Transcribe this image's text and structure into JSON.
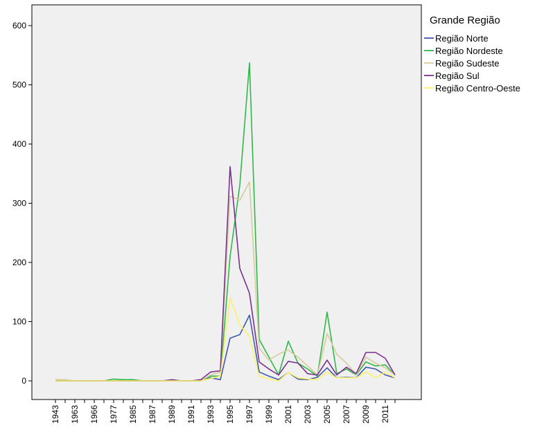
{
  "chart_data": {
    "type": "line",
    "title": "",
    "xlabel": "",
    "ylabel": "",
    "ylim": [
      -30,
      650
    ],
    "yticks": [
      0,
      100,
      200,
      300,
      400,
      500,
      600
    ],
    "grid": false,
    "legend_position": "right",
    "legend_title": "Grande Região",
    "plot_background": "#f0f0f0",
    "x": [
      "1943",
      "1960",
      "1963",
      "1964",
      "1966",
      "1975",
      "1977",
      "1980",
      "1985",
      "1986",
      "1987",
      "1988",
      "1989",
      "1990",
      "1991",
      "1992",
      "1993",
      "1994",
      "1995",
      "1996",
      "1997",
      "1998",
      "1999",
      "2000",
      "2001",
      "2002",
      "2003",
      "2004",
      "2005",
      "2006",
      "2007",
      "2008",
      "2009",
      "2010",
      "2011",
      "2012"
    ],
    "x_tick_labels": [
      "1943",
      "1963",
      "1966",
      "1977",
      "1985",
      "1987",
      "1989",
      "1991",
      "1993",
      "1995",
      "1997",
      "1999",
      "2001",
      "2003",
      "2005",
      "2007",
      "2009",
      "2011"
    ],
    "series": [
      {
        "name": "Região Norte",
        "color": "#3e58ac",
        "values": [
          0,
          0,
          0,
          0,
          0,
          0,
          0,
          0,
          0,
          0,
          0,
          0,
          0,
          0,
          0,
          0,
          5,
          2,
          72,
          78,
          111,
          15,
          8,
          2,
          14,
          3,
          2,
          6,
          22,
          5,
          6,
          5,
          23,
          20,
          10,
          5
        ]
      },
      {
        "name": "Região Nordeste",
        "color": "#2eb848",
        "values": [
          0,
          0,
          0,
          0,
          0,
          0,
          3,
          2,
          2,
          0,
          0,
          0,
          0,
          0,
          0,
          0,
          8,
          8,
          210,
          330,
          537,
          70,
          40,
          10,
          67,
          30,
          20,
          8,
          116,
          12,
          20,
          10,
          32,
          25,
          27,
          10
        ]
      },
      {
        "name": "Região Sudeste",
        "color": "#d4cc9c",
        "values": [
          2,
          2,
          0,
          0,
          0,
          0,
          0,
          0,
          0,
          0,
          0,
          0,
          0,
          0,
          0,
          0,
          10,
          15,
          312,
          305,
          336,
          55,
          35,
          45,
          52,
          40,
          25,
          10,
          80,
          45,
          30,
          10,
          40,
          30,
          22,
          10
        ]
      },
      {
        "name": "Região Sul",
        "color": "#7b2f8f",
        "values": [
          0,
          0,
          0,
          0,
          0,
          0,
          0,
          0,
          0,
          0,
          0,
          0,
          2,
          0,
          0,
          2,
          15,
          17,
          362,
          190,
          148,
          32,
          20,
          10,
          33,
          30,
          12,
          10,
          35,
          10,
          23,
          12,
          48,
          48,
          38,
          10
        ]
      },
      {
        "name": "Região Centro-Oeste",
        "color": "#fbf267",
        "values": [
          0,
          0,
          0,
          0,
          0,
          0,
          0,
          0,
          0,
          0,
          0,
          0,
          0,
          0,
          0,
          0,
          4,
          8,
          140,
          95,
          75,
          8,
          3,
          0,
          14,
          5,
          3,
          2,
          15,
          5,
          5,
          5,
          15,
          5,
          15,
          5
        ]
      }
    ]
  }
}
